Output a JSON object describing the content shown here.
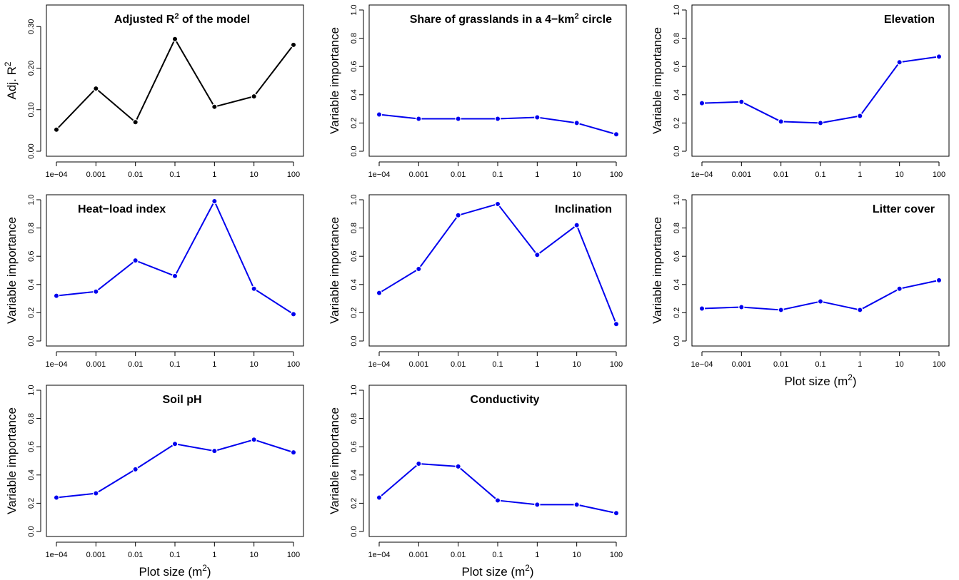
{
  "figure": {
    "x_axis_title": "Plot size (m²)",
    "x_tick_labels": [
      "1e−04",
      "0.001",
      "0.01",
      "0.1",
      "1",
      "10",
      "100"
    ]
  },
  "chart_data": [
    {
      "type": "line",
      "title": "Adjusted R² of the model",
      "ylabel": "Adj. R²",
      "xlabel": "",
      "x": [
        "1e-04",
        "0.001",
        "0.01",
        "0.1",
        "1",
        "10",
        "100"
      ],
      "ylim": [
        0.0,
        0.34
      ],
      "yticks": [
        "0.00",
        "0.10",
        "0.20",
        "0.30"
      ],
      "series": [
        {
          "values": [
            0.052,
            0.151,
            0.07,
            0.27,
            0.107,
            0.132,
            0.256
          ]
        }
      ],
      "color": "#000000",
      "title_align": "center"
    },
    {
      "type": "line",
      "title": "Share of grasslands in a 4−km² circle",
      "ylabel": "Variable importance",
      "xlabel": "",
      "x": [
        "1e-04",
        "0.001",
        "0.01",
        "0.1",
        "1",
        "10",
        "100"
      ],
      "ylim": [
        0.0,
        1.0
      ],
      "yticks": [
        "0.0",
        "0.2",
        "0.4",
        "0.6",
        "0.8",
        "1.0"
      ],
      "series": [
        {
          "values": [
            0.26,
            0.23,
            0.23,
            0.23,
            0.24,
            0.2,
            0.12
          ]
        }
      ],
      "color": "#0000ee",
      "title_align": "right"
    },
    {
      "type": "line",
      "title": "Elevation",
      "ylabel": "Variable importance",
      "xlabel": "",
      "x": [
        "1e-04",
        "0.001",
        "0.01",
        "0.1",
        "1",
        "10",
        "100"
      ],
      "ylim": [
        0.0,
        1.0
      ],
      "yticks": [
        "0.0",
        "0.2",
        "0.4",
        "0.6",
        "0.8",
        "1.0"
      ],
      "series": [
        {
          "values": [
            0.34,
            0.35,
            0.21,
            0.2,
            0.25,
            0.63,
            0.67
          ]
        }
      ],
      "color": "#0000ee",
      "title_align": "right"
    },
    {
      "type": "line",
      "title": "Heat−load index",
      "ylabel": "Variable importance",
      "xlabel": "",
      "x": [
        "1e-04",
        "0.001",
        "0.01",
        "0.1",
        "1",
        "10",
        "100"
      ],
      "ylim": [
        0.0,
        1.0
      ],
      "yticks": [
        "0.0",
        "0.2",
        "0.4",
        "0.6",
        "0.8",
        "1.0"
      ],
      "series": [
        {
          "values": [
            0.32,
            0.35,
            0.57,
            0.46,
            0.99,
            0.37,
            0.19
          ]
        }
      ],
      "color": "#0000ee",
      "title_align": "left"
    },
    {
      "type": "line",
      "title": "Inclination",
      "ylabel": "Variable importance",
      "xlabel": "",
      "x": [
        "1e-04",
        "0.001",
        "0.01",
        "0.1",
        "1",
        "10",
        "100"
      ],
      "ylim": [
        0.0,
        1.0
      ],
      "yticks": [
        "0.0",
        "0.2",
        "0.4",
        "0.6",
        "0.8",
        "1.0"
      ],
      "series": [
        {
          "values": [
            0.34,
            0.51,
            0.89,
            0.97,
            0.61,
            0.82,
            0.12
          ]
        }
      ],
      "color": "#0000ee",
      "title_align": "right"
    },
    {
      "type": "line",
      "title": "Litter cover",
      "ylabel": "Variable importance",
      "xlabel": "Plot size (m²)",
      "x": [
        "1e-04",
        "0.001",
        "0.01",
        "0.1",
        "1",
        "10",
        "100"
      ],
      "ylim": [
        0.0,
        1.0
      ],
      "yticks": [
        "0.0",
        "0.2",
        "0.4",
        "0.6",
        "0.8",
        "1.0"
      ],
      "series": [
        {
          "values": [
            0.23,
            0.24,
            0.22,
            0.28,
            0.22,
            0.37,
            0.43
          ]
        }
      ],
      "color": "#0000ee",
      "title_align": "right"
    },
    {
      "type": "line",
      "title": "Soil pH",
      "ylabel": "Variable importance",
      "xlabel": "Plot size (m²)",
      "x": [
        "1e-04",
        "0.001",
        "0.01",
        "0.1",
        "1",
        "10",
        "100"
      ],
      "ylim": [
        0.0,
        1.0
      ],
      "yticks": [
        "0.0",
        "0.2",
        "0.4",
        "0.6",
        "0.8",
        "1.0"
      ],
      "series": [
        {
          "values": [
            0.24,
            0.27,
            0.44,
            0.62,
            0.57,
            0.65,
            0.56
          ]
        }
      ],
      "color": "#0000ee",
      "title_align": "center"
    },
    {
      "type": "line",
      "title": "Conductivity",
      "ylabel": "Variable importance",
      "xlabel": "Plot size (m²)",
      "x": [
        "1e-04",
        "0.001",
        "0.01",
        "0.1",
        "1",
        "10",
        "100"
      ],
      "ylim": [
        0.0,
        1.0
      ],
      "yticks": [
        "0.0",
        "0.2",
        "0.4",
        "0.6",
        "0.8",
        "1.0"
      ],
      "series": [
        {
          "values": [
            0.24,
            0.48,
            0.46,
            0.22,
            0.19,
            0.19,
            0.13
          ]
        }
      ],
      "color": "#0000ee",
      "title_align": "center"
    }
  ]
}
